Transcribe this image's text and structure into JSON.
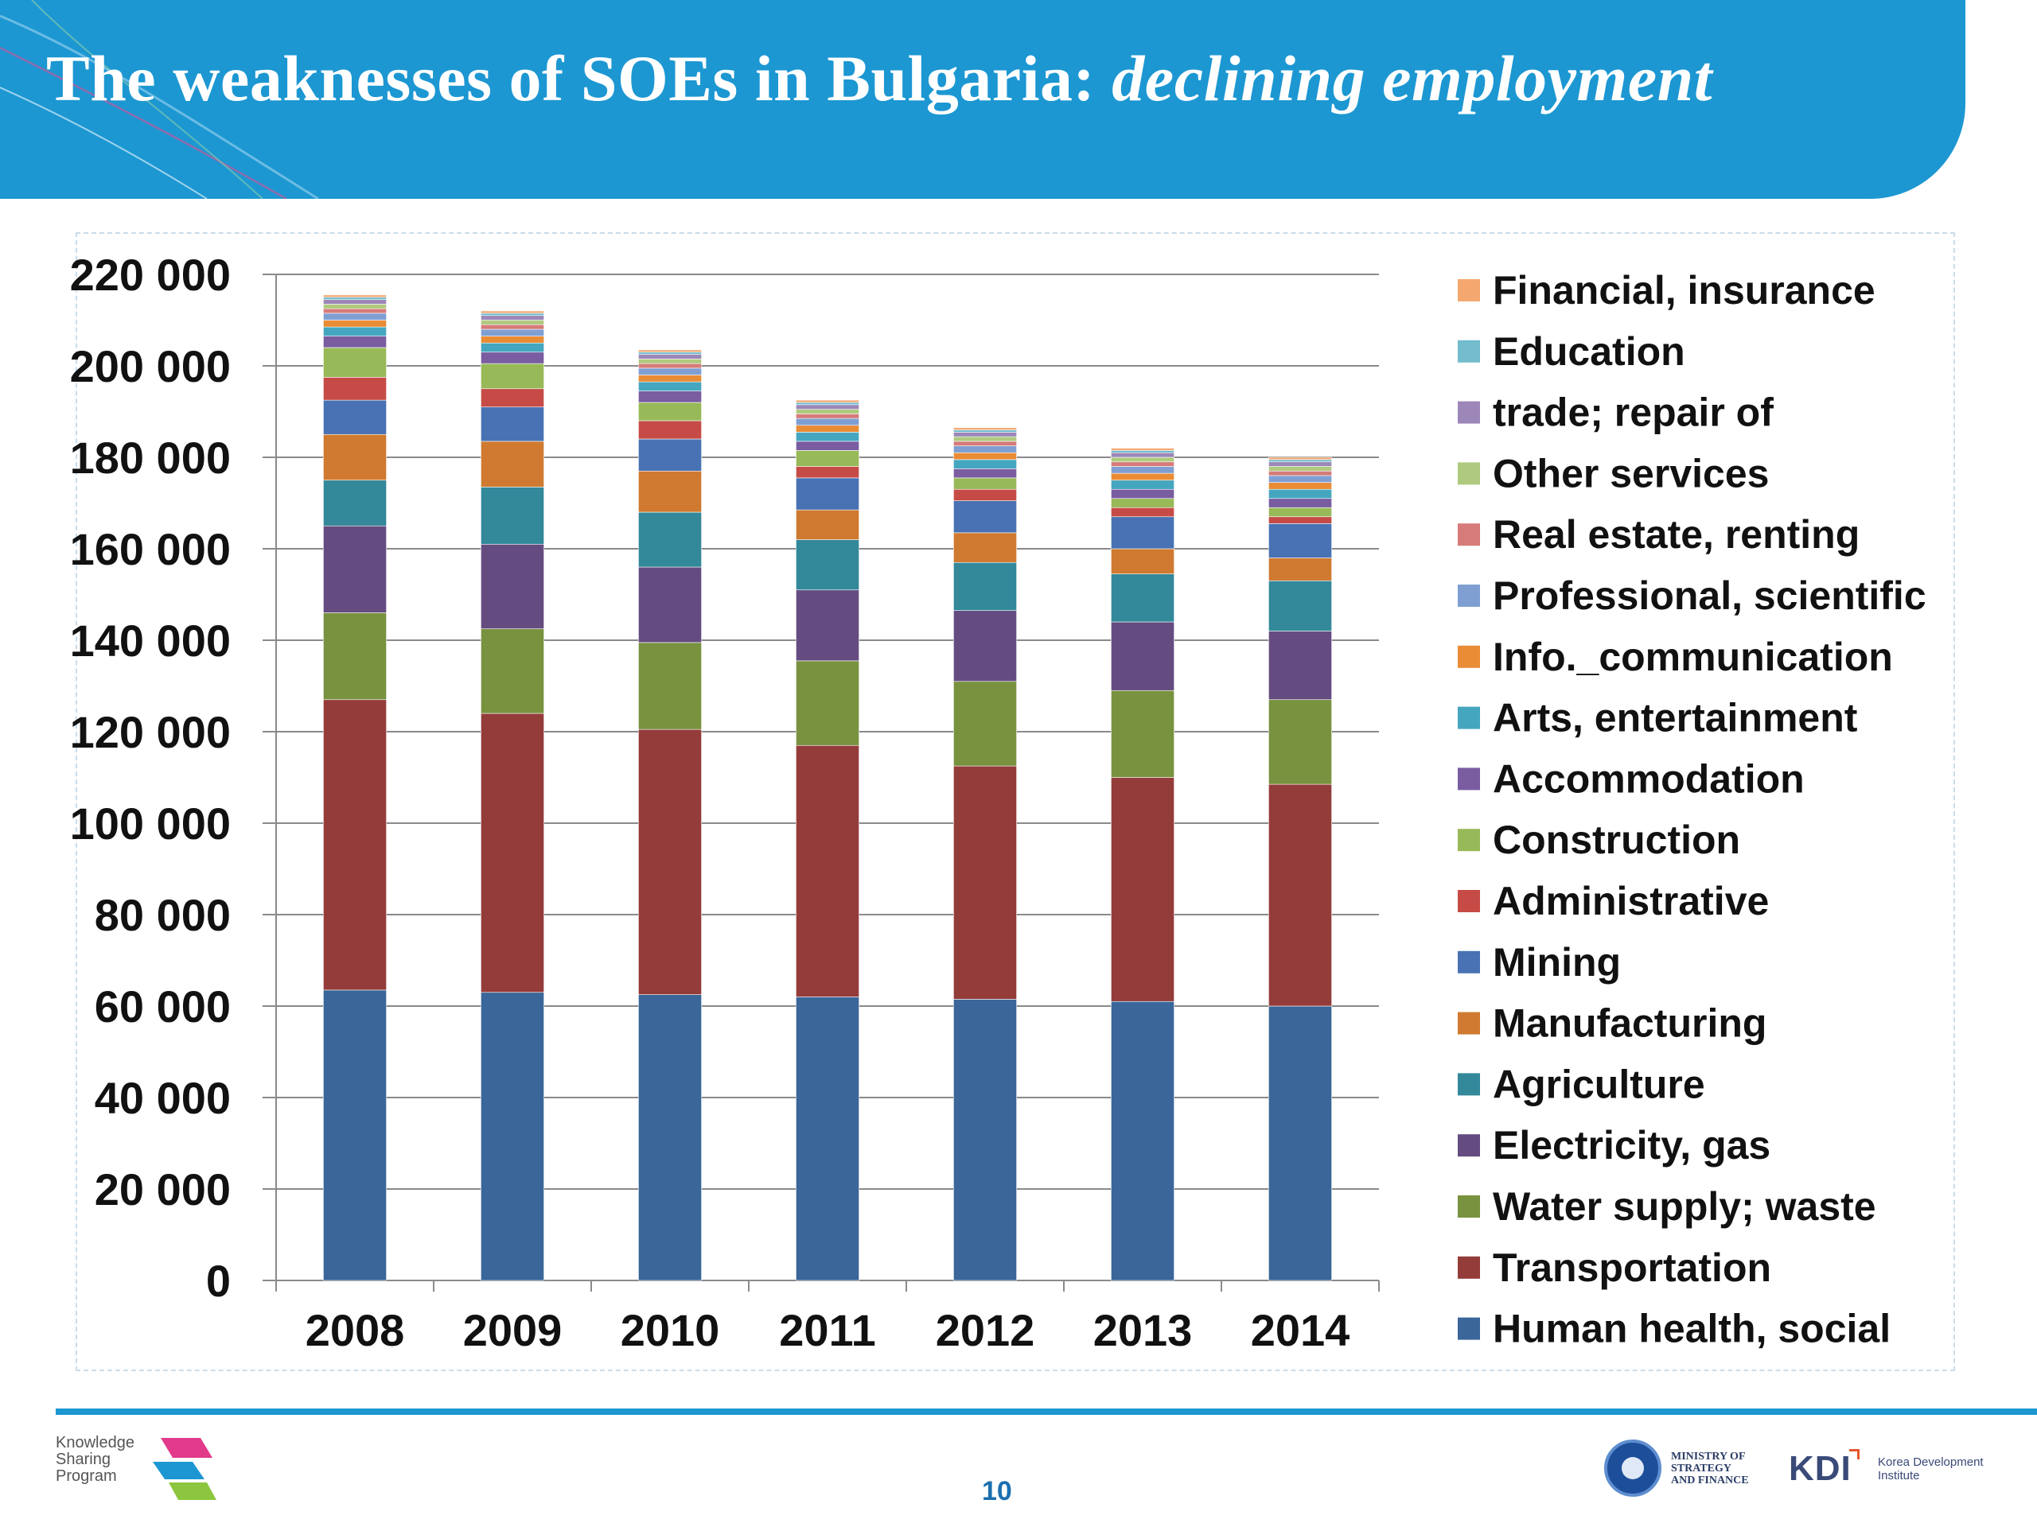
{
  "slide": {
    "title_regular": "The weaknesses of SOEs in Bulgaria: ",
    "title_italic": "declining employment",
    "page_number": "10",
    "accent_color": "#1c97d2"
  },
  "footer": {
    "ksp_logo_lines": [
      "Knowledge",
      "Sharing",
      "Program"
    ],
    "ministry_lines": [
      "MINISTRY OF",
      "STRATEGY",
      "AND FINANCE"
    ],
    "kdi_mark": "KDI",
    "kdi_sub_lines": [
      "Korea Development",
      "Institute"
    ]
  },
  "chart_data": {
    "type": "bar",
    "stacked": true,
    "categories": [
      "2008",
      "2009",
      "2010",
      "2011",
      "2012",
      "2013",
      "2014"
    ],
    "y_ticks": [
      "0",
      "20 000",
      "40 000",
      "60 000",
      "80 000",
      "100 000",
      "120 000",
      "140 000",
      "160 000",
      "180 000",
      "200 000",
      "220 000"
    ],
    "ylim": [
      0,
      220000
    ],
    "grid": true,
    "legend_position": "right",
    "series": [
      {
        "name": "Human health, social",
        "color": "#3a6699",
        "values": [
          63500,
          63000,
          62500,
          62000,
          61500,
          61000,
          60000
        ]
      },
      {
        "name": "Transportation",
        "color": "#943c3a",
        "values": [
          63500,
          61000,
          58000,
          55000,
          51000,
          49000,
          48500
        ]
      },
      {
        "name": "Water supply; waste",
        "color": "#78923f",
        "values": [
          19000,
          18500,
          19000,
          18500,
          18500,
          19000,
          18500
        ]
      },
      {
        "name": "Electricity, gas",
        "color": "#644c80",
        "values": [
          19000,
          18500,
          16500,
          15500,
          15500,
          15000,
          15000
        ]
      },
      {
        "name": "Agriculture",
        "color": "#33889a",
        "values": [
          10000,
          12500,
          12000,
          11000,
          10500,
          10500,
          11000
        ]
      },
      {
        "name": "Manufacturing",
        "color": "#cf7a30",
        "values": [
          10000,
          10000,
          9000,
          6500,
          6500,
          5500,
          5000
        ]
      },
      {
        "name": "Mining",
        "color": "#4872b3",
        "values": [
          7500,
          7500,
          7000,
          7000,
          7000,
          7000,
          7500
        ]
      },
      {
        "name": "Administrative",
        "color": "#c64b46",
        "values": [
          5000,
          4000,
          4000,
          2500,
          2500,
          2000,
          1500
        ]
      },
      {
        "name": "Construction",
        "color": "#98b958",
        "values": [
          6500,
          5500,
          4000,
          3500,
          2500,
          2000,
          2000
        ]
      },
      {
        "name": "Accommodation",
        "color": "#7a5ca1",
        "values": [
          2500,
          2500,
          2500,
          2000,
          2000,
          2000,
          2000
        ]
      },
      {
        "name": "Arts, entertainment",
        "color": "#45a6bf",
        "values": [
          2000,
          2000,
          2000,
          2000,
          2000,
          2000,
          2000
        ]
      },
      {
        "name": "Info._communication",
        "color": "#e98c35",
        "values": [
          1500,
          1500,
          1500,
          1500,
          1500,
          1500,
          1500
        ]
      },
      {
        "name": "Professional, scientific",
        "color": "#7f9fd3",
        "values": [
          1500,
          1500,
          1500,
          1500,
          1500,
          1500,
          1500
        ]
      },
      {
        "name": "Real estate, renting",
        "color": "#d67b79",
        "values": [
          1000,
          1000,
          1000,
          1000,
          1000,
          1000,
          1000
        ]
      },
      {
        "name": "Other services",
        "color": "#afca7e",
        "values": [
          1000,
          1000,
          1000,
          1000,
          1000,
          1000,
          1000
        ]
      },
      {
        "name": "trade; repair of",
        "color": "#9c87b8",
        "values": [
          1000,
          1000,
          1000,
          1000,
          1000,
          1000,
          1000
        ]
      },
      {
        "name": "Education",
        "color": "#72bccd",
        "values": [
          500,
          500,
          500,
          500,
          500,
          500,
          500
        ]
      },
      {
        "name": "Financial, insurance",
        "color": "#f4a870",
        "values": [
          500,
          500,
          500,
          500,
          500,
          500,
          500
        ]
      }
    ]
  }
}
